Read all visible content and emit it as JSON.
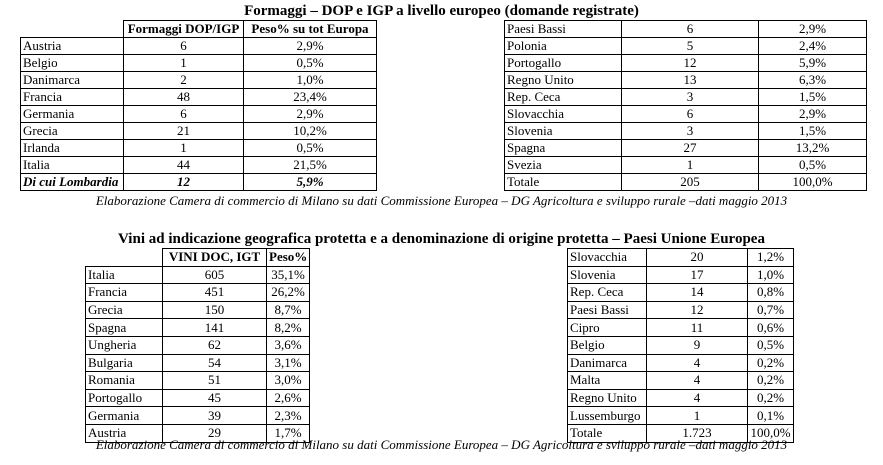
{
  "cheese": {
    "title": "Formaggi – DOP e IGP a livello europeo (domande registrate)",
    "headers": {
      "count": "Formaggi DOP/IGP",
      "share": "Peso% su tot Europa"
    },
    "left_rows": [
      {
        "country": "Austria",
        "count": "6",
        "share": "2,9%"
      },
      {
        "country": "Belgio",
        "count": "1",
        "share": "0,5%"
      },
      {
        "country": "Danimarca",
        "count": "2",
        "share": "1,0%"
      },
      {
        "country": "Francia",
        "count": "48",
        "share": "23,4%"
      },
      {
        "country": "Germania",
        "count": "6",
        "share": "2,9%"
      },
      {
        "country": "Grecia",
        "count": "21",
        "share": "10,2%"
      },
      {
        "country": "Irlanda",
        "count": "1",
        "share": "0,5%"
      },
      {
        "country": "Italia",
        "count": "44",
        "share": "21,5%"
      },
      {
        "country": "Di cui Lombardia",
        "count": "12",
        "share": "5,9%"
      }
    ],
    "right_rows": [
      {
        "country": "Paesi Bassi",
        "count": "6",
        "share": "2,9%"
      },
      {
        "country": "Polonia",
        "count": "5",
        "share": "2,4%"
      },
      {
        "country": "Portogallo",
        "count": "12",
        "share": "5,9%"
      },
      {
        "country": "Regno Unito",
        "count": "13",
        "share": "6,3%"
      },
      {
        "country": "Rep. Ceca",
        "count": "3",
        "share": "1,5%"
      },
      {
        "country": "Slovacchia",
        "count": "6",
        "share": "2,9%"
      },
      {
        "country": "Slovenia",
        "count": "3",
        "share": "1,5%"
      },
      {
        "country": "Spagna",
        "count": "27",
        "share": "13,2%"
      },
      {
        "country": "Svezia",
        "count": "1",
        "share": "0,5%"
      },
      {
        "country": "Totale",
        "count": "205",
        "share": "100,0%"
      }
    ],
    "caption": "Elaborazione Camera di commercio di Milano su dati Commissione Europea – DG Agricoltura e sviluppo rurale –dati maggio 2013"
  },
  "wine": {
    "title": "Vini ad indicazione geografica protetta e a denominazione di origine protetta – Paesi Unione Europea",
    "headers": {
      "count": "VINI DOC, IGT",
      "share": "Peso%"
    },
    "left_rows": [
      {
        "country": "Italia",
        "count": "605",
        "share": "35,1%"
      },
      {
        "country": "Francia",
        "count": "451",
        "share": "26,2%"
      },
      {
        "country": "Grecia",
        "count": "150",
        "share": "8,7%"
      },
      {
        "country": "Spagna",
        "count": "141",
        "share": "8,2%"
      },
      {
        "country": "Ungheria",
        "count": "62",
        "share": "3,6%"
      },
      {
        "country": "Bulgaria",
        "count": "54",
        "share": "3,1%"
      },
      {
        "country": "Romania",
        "count": "51",
        "share": "3,0%"
      },
      {
        "country": "Portogallo",
        "count": "45",
        "share": "2,6%"
      },
      {
        "country": "Germania",
        "count": "39",
        "share": "2,3%"
      },
      {
        "country": "Austria",
        "count": "29",
        "share": "1,7%"
      }
    ],
    "right_rows": [
      {
        "country": "Slovacchia",
        "count": "20",
        "share": "1,2%"
      },
      {
        "country": "Slovenia",
        "count": "17",
        "share": "1,0%"
      },
      {
        "country": "Rep. Ceca",
        "count": "14",
        "share": "0,8%"
      },
      {
        "country": "Paesi Bassi",
        "count": "12",
        "share": "0,7%"
      },
      {
        "country": "Cipro",
        "count": "11",
        "share": "0,6%"
      },
      {
        "country": "Belgio",
        "count": "9",
        "share": "0,5%"
      },
      {
        "country": "Danimarca",
        "count": "4",
        "share": "0,2%"
      },
      {
        "country": "Malta",
        "count": "4",
        "share": "0,2%"
      },
      {
        "country": "Regno Unito",
        "count": "4",
        "share": "0,2%"
      },
      {
        "country": "Lussemburgo",
        "count": "1",
        "share": "0,1%"
      },
      {
        "country": "Totale",
        "count": "1.723",
        "share": "100,0%"
      }
    ],
    "caption": "Elaborazione Camera di commercio di Milano su dati Commissione Europea – DG Agricoltura e sviluppo rurale –dati maggio 2013"
  }
}
